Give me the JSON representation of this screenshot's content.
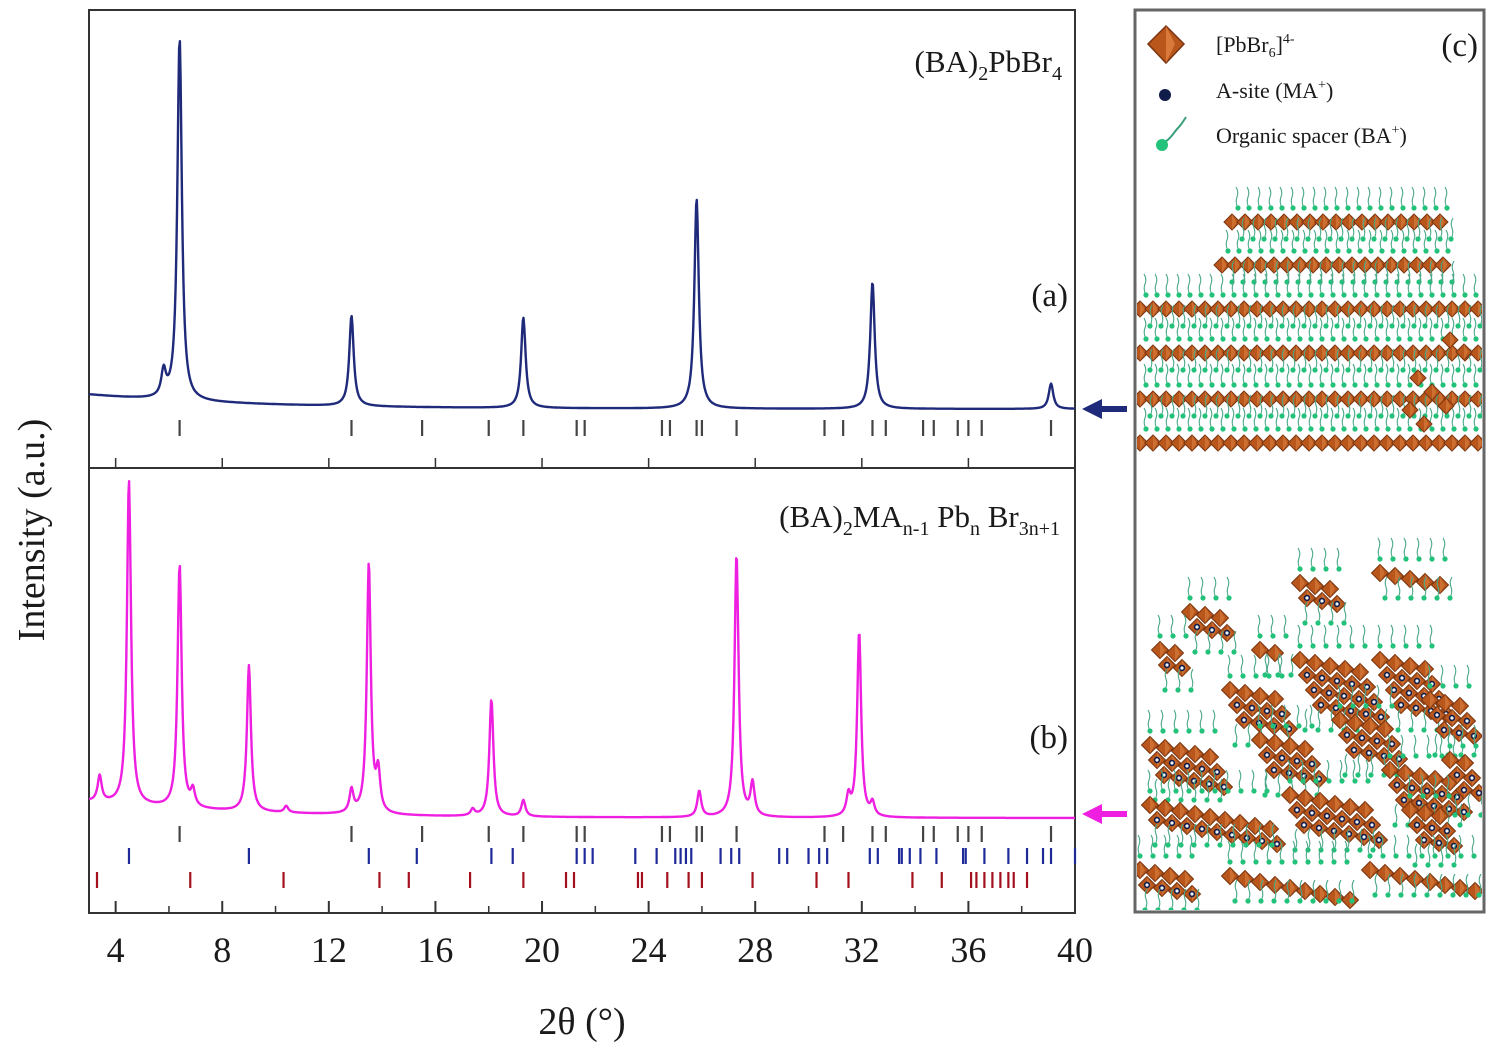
{
  "colors": {
    "series_a": "#1f2a7a",
    "series_b": "#ee1fe0",
    "ticks_gray": "#444444",
    "ticks_blue": "#1f2a99",
    "ticks_red": "#a3101e",
    "octahedron": "#b8561c",
    "octahedron_dark": "#7a3510",
    "a_site": "#101c4a",
    "spacer": "#22c27a",
    "frame": "#555555"
  },
  "chart_data": [
    {
      "type": "line",
      "panel": "(a)",
      "label": "(BA)2PbBr4",
      "title_parts": {
        "base": "(BA)",
        "s1": "2",
        "mid": "PbBr",
        "s2": "4"
      },
      "xlabel": "2θ (°)",
      "ylabel": "Intensity (a.u.)",
      "xlim": [
        3,
        40
      ],
      "x_ticks": [
        4,
        8,
        12,
        16,
        20,
        24,
        28,
        32,
        36,
        40
      ],
      "baseline": 0.04,
      "peaks": [
        {
          "x": 5.8,
          "h": 0.07
        },
        {
          "x": 6.4,
          "h": 1.0
        },
        {
          "x": 12.85,
          "h": 0.25
        },
        {
          "x": 19.3,
          "h": 0.25
        },
        {
          "x": 25.8,
          "h": 0.58
        },
        {
          "x": 32.4,
          "h": 0.35
        },
        {
          "x": 39.1,
          "h": 0.07
        }
      ],
      "reference_ticks": [
        {
          "color": "gray",
          "x": [
            6.4,
            12.85,
            15.5,
            18.0,
            19.3,
            21.3,
            21.6,
            24.5,
            24.8,
            25.8,
            26.0,
            27.3,
            30.6,
            31.3,
            32.4,
            32.9,
            34.3,
            34.7,
            35.6,
            36.0,
            36.5,
            39.1
          ]
        }
      ],
      "arrow": "left"
    },
    {
      "type": "line",
      "panel": "(b)",
      "label": "(BA)2MAn-1 Pbn Br3n+1",
      "title_parts": {
        "base": "(BA)",
        "s1": "2",
        "mid": "MA",
        "s2": "n-1",
        "mid2": " Pb",
        "s3": "n",
        "mid3": " Br",
        "s4": "3n+1"
      },
      "xlim": [
        3,
        40
      ],
      "baseline": 0.05,
      "peaks": [
        {
          "x": 3.4,
          "h": 0.08
        },
        {
          "x": 4.5,
          "h": 1.0
        },
        {
          "x": 6.4,
          "h": 0.75
        },
        {
          "x": 6.9,
          "h": 0.05
        },
        {
          "x": 9.0,
          "h": 0.45
        },
        {
          "x": 10.4,
          "h": 0.02
        },
        {
          "x": 12.85,
          "h": 0.07
        },
        {
          "x": 13.5,
          "h": 0.77
        },
        {
          "x": 13.85,
          "h": 0.12
        },
        {
          "x": 17.4,
          "h": 0.02
        },
        {
          "x": 18.1,
          "h": 0.36
        },
        {
          "x": 19.3,
          "h": 0.05
        },
        {
          "x": 25.9,
          "h": 0.08
        },
        {
          "x": 27.3,
          "h": 0.81
        },
        {
          "x": 27.9,
          "h": 0.1
        },
        {
          "x": 31.5,
          "h": 0.06
        },
        {
          "x": 31.9,
          "h": 0.57
        },
        {
          "x": 32.4,
          "h": 0.04
        }
      ],
      "reference_ticks": [
        {
          "color": "gray",
          "x": [
            6.4,
            12.85,
            15.5,
            18.0,
            19.3,
            21.3,
            21.6,
            24.5,
            24.8,
            25.8,
            26.0,
            27.3,
            30.6,
            31.3,
            32.4,
            32.9,
            34.3,
            34.7,
            35.6,
            36.0,
            36.5,
            39.1
          ]
        },
        {
          "color": "blue",
          "x": [
            4.5,
            9.0,
            13.5,
            15.3,
            18.1,
            18.9,
            21.3,
            21.6,
            21.9,
            23.5,
            24.3,
            25.0,
            25.2,
            25.4,
            25.6,
            26.7,
            27.1,
            27.4,
            28.9,
            29.2,
            30.0,
            30.4,
            30.7,
            32.3,
            32.6,
            33.4,
            33.5,
            33.8,
            34.2,
            34.8,
            35.8,
            35.9,
            36.6,
            37.5,
            38.2,
            38.8,
            39.1,
            40.0
          ]
        },
        {
          "color": "red",
          "x": [
            3.3,
            6.8,
            10.3,
            13.9,
            15.0,
            17.3,
            19.3,
            20.9,
            21.2,
            23.6,
            23.75,
            24.7,
            25.5,
            26.0,
            27.9,
            30.3,
            31.5,
            33.9,
            35.0,
            36.1,
            36.3,
            36.6,
            36.9,
            37.2,
            37.5,
            37.7,
            38.2
          ]
        }
      ],
      "arrow": "left"
    }
  ],
  "panel_c": {
    "label": "(c)",
    "legend": [
      {
        "icon": "octahedron",
        "text": "[PbBr",
        "sub": "6",
        "sup": "4-",
        "tail": "]"
      },
      {
        "icon": "a-site",
        "text": "A-site (MA",
        "sup": "+",
        "tail": ")"
      },
      {
        "icon": "spacer",
        "text": "Organic spacer (BA",
        "sup": "+",
        "tail": ")"
      }
    ]
  }
}
